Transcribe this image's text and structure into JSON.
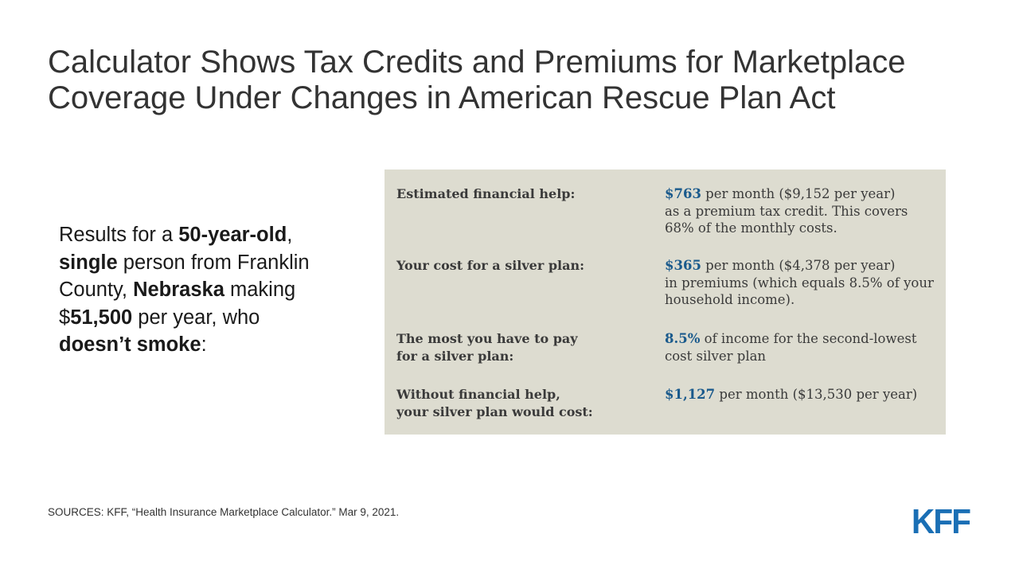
{
  "title": {
    "line1": "Calculator Shows Tax Credits and Premiums for Marketplace",
    "line2": "Coverage Under Changes in American Rescue Plan Act"
  },
  "intro": {
    "results_for_a": "Results for a ",
    "age": "50-year-old",
    "comma": ",",
    "single": "single",
    "person_from": " person from Franklin",
    "county": "County, ",
    "state": "Nebraska",
    "making": " making",
    "dollar": "$",
    "income": "51,500",
    "per_year_who": " per year, who",
    "smoke": "doesn’t smoke",
    "colon": ":"
  },
  "panel": {
    "rows": [
      {
        "label": [
          "Estimated financial help:"
        ],
        "amount": "$763",
        "lines": [
          " per month ($9,152 per year)",
          "as a premium tax credit. This covers",
          "68% of the monthly costs."
        ]
      },
      {
        "label": [
          "Your cost for a silver plan:"
        ],
        "amount": "$365",
        "lines": [
          " per month ($4,378 per year)",
          "in premiums (which equals 8.5% of your",
          "household income)."
        ]
      },
      {
        "label": [
          "The most you have to pay",
          "for a silver plan:"
        ],
        "amount": "8.5%",
        "lines": [
          " of income for the second-lowest",
          "cost silver plan"
        ]
      },
      {
        "label": [
          "Without financial help,",
          "your silver plan would cost:"
        ],
        "amount": "$1,127",
        "lines": [
          " per month ($13,530 per year)"
        ]
      }
    ]
  },
  "sources": "SOURCES: KFF, “Health Insurance Marketplace Calculator.” Mar 9, 2021.",
  "logo": {
    "text": "KFF",
    "color": "#1a6fb5"
  },
  "colors": {
    "panel_bg": "#dddcd0",
    "highlight": "#1a5a8c"
  }
}
